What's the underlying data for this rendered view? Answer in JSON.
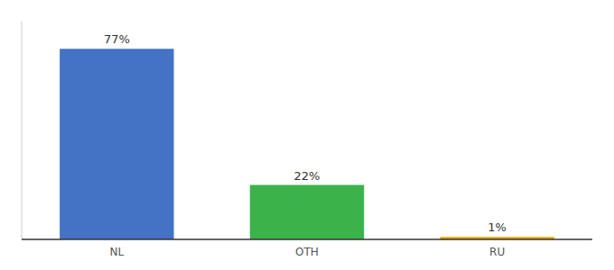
{
  "chart_data": {
    "type": "bar",
    "categories": [
      "NL",
      "OTH",
      "RU"
    ],
    "values": [
      77,
      22,
      1
    ],
    "value_labels": [
      "77%",
      "22%",
      "1%"
    ],
    "colors": [
      "#4472c4",
      "#3bb34a",
      "#f0a500"
    ],
    "ylim": [
      0,
      88
    ],
    "data_labels": true,
    "tick_labels": "x"
  }
}
